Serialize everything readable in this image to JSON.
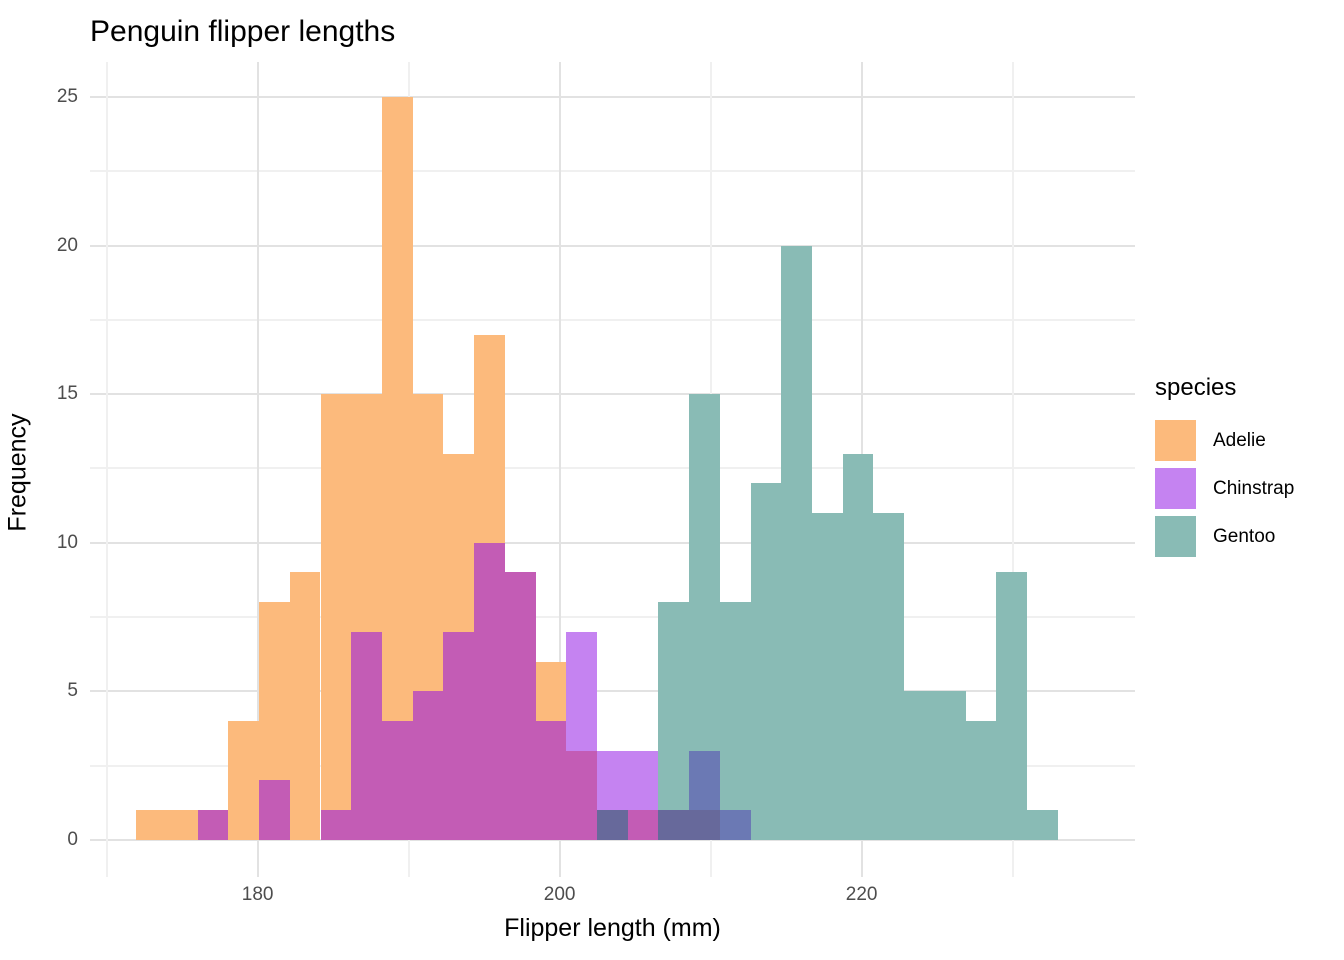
{
  "title": "Penguin flipper lengths",
  "axes": {
    "x": {
      "title": "Flipper length (mm)",
      "tick_labels": [
        "180",
        "200",
        "220"
      ],
      "tick_values": [
        180,
        200,
        220
      ],
      "minor_tick_values": [
        170,
        190,
        210,
        230
      ],
      "range": [
        168.9,
        238.1
      ]
    },
    "y": {
      "title": "Frequency",
      "tick_labels": [
        "0",
        "5",
        "10",
        "15",
        "20",
        "25"
      ],
      "tick_values": [
        0,
        5,
        10,
        15,
        20,
        25
      ],
      "minor_tick_values": [
        2.5,
        7.5,
        12.5,
        17.5,
        22.5
      ],
      "range": [
        -1.3,
        26.3
      ]
    }
  },
  "legend": {
    "title": "species",
    "entries": [
      {
        "label": "Adelie",
        "color": "#FCBA7C"
      },
      {
        "label": "Chinstrap",
        "color": "#C583F1"
      },
      {
        "label": "Gentoo",
        "color": "#89BBB5"
      }
    ]
  },
  "chart_data": {
    "type": "bar",
    "subtype": "overlaid-histogram",
    "title": "Penguin flipper lengths",
    "xlabel": "Flipper length (mm)",
    "ylabel": "Frequency",
    "xlim": [
      168.9,
      238.1
    ],
    "ylim": [
      0,
      26.3
    ],
    "grid": "on",
    "legend_position": "right",
    "alpha": 0.5,
    "bin_start": 171.96,
    "bin_width": 2.034,
    "bin_centers": [
      173,
      175,
      177,
      179,
      181,
      183,
      185,
      187,
      189,
      191,
      193,
      195,
      197,
      199,
      201,
      203,
      205,
      207,
      209,
      211,
      213,
      215,
      217,
      219,
      221,
      223,
      225,
      227,
      229,
      231
    ],
    "series": [
      {
        "name": "Adelie",
        "fill": "#FCBA7C",
        "values": [
          1,
          1,
          1,
          4,
          8,
          9,
          15,
          15,
          25,
          15,
          13,
          17,
          9,
          6,
          3,
          1,
          1,
          1,
          1,
          0,
          0,
          0,
          0,
          0,
          0,
          0,
          0,
          0,
          0,
          0
        ]
      },
      {
        "name": "Chinstrap",
        "fill": "#C583F1",
        "values": [
          0,
          0,
          1,
          0,
          2,
          0,
          1,
          7,
          4,
          5,
          7,
          10,
          9,
          4,
          7,
          3,
          3,
          1,
          3,
          1,
          0,
          0,
          0,
          0,
          0,
          0,
          0,
          0,
          0,
          0
        ]
      },
      {
        "name": "Gentoo",
        "fill": "#89BBB5",
        "values": [
          0,
          0,
          0,
          0,
          0,
          0,
          0,
          0,
          0,
          0,
          0,
          0,
          0,
          0,
          0,
          1,
          0,
          8,
          15,
          8,
          12,
          20,
          11,
          13,
          11,
          5,
          5,
          4,
          9,
          1
        ]
      }
    ],
    "overlap_colors": {
      "A": "#FCBA7C",
      "C": "#C583F1",
      "G": "#89BBB5",
      "AC": "#C35CB5",
      "CG": "#6B79B4",
      "AG": "#A9B18E",
      "ACG": "#67699B"
    }
  }
}
